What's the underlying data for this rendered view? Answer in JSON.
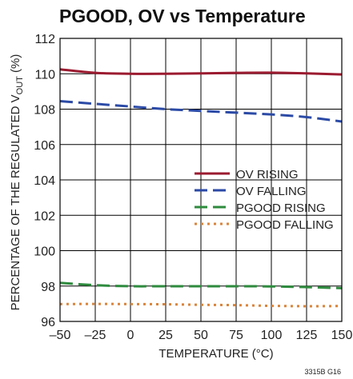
{
  "chart_data": {
    "type": "line",
    "title": "PGOOD, OV vs Temperature",
    "xlabel": "TEMPERATURE (°C)",
    "ylabel": "PERCENTAGE OF THE REGULATED V",
    "ylabel_sub": "OUT",
    "ylabel_tail": " (%)",
    "xlim": [
      -50,
      150
    ],
    "ylim": [
      96,
      112
    ],
    "x_ticks": [
      "–50",
      "–25",
      "0",
      "25",
      "50",
      "75",
      "100",
      "125",
      "150"
    ],
    "y_ticks": [
      "96",
      "98",
      "100",
      "102",
      "104",
      "106",
      "108",
      "110",
      "112"
    ],
    "grid": true,
    "legend_position": "center-right",
    "series": [
      {
        "name": "OV RISING",
        "color": "#9b1b30",
        "style": "solid",
        "x": [
          -50,
          -25,
          0,
          25,
          50,
          75,
          100,
          125,
          150
        ],
        "y": [
          110.25,
          110.05,
          110.0,
          110.0,
          110.02,
          110.05,
          110.06,
          110.02,
          109.96
        ]
      },
      {
        "name": "OV FALLING",
        "color": "#2b4aa6",
        "style": "dash",
        "x": [
          -50,
          -25,
          0,
          25,
          50,
          75,
          100,
          125,
          150
        ],
        "y": [
          108.45,
          108.3,
          108.15,
          108.0,
          107.9,
          107.8,
          107.7,
          107.55,
          107.3
        ]
      },
      {
        "name": "PGOOD RISING",
        "color": "#2e8b3e",
        "style": "dash",
        "x": [
          -50,
          -25,
          0,
          25,
          50,
          75,
          100,
          125,
          150
        ],
        "y": [
          98.18,
          98.05,
          97.99,
          97.99,
          97.99,
          97.99,
          97.98,
          97.94,
          97.88
        ]
      },
      {
        "name": "PGOOD FALLING",
        "color": "#d9843a",
        "style": "dot",
        "x": [
          -50,
          -25,
          0,
          25,
          50,
          75,
          100,
          125,
          150
        ],
        "y": [
          96.98,
          96.99,
          96.98,
          96.97,
          96.94,
          96.92,
          96.88,
          96.86,
          96.87
        ]
      }
    ]
  },
  "figure_id": "3315B G16"
}
